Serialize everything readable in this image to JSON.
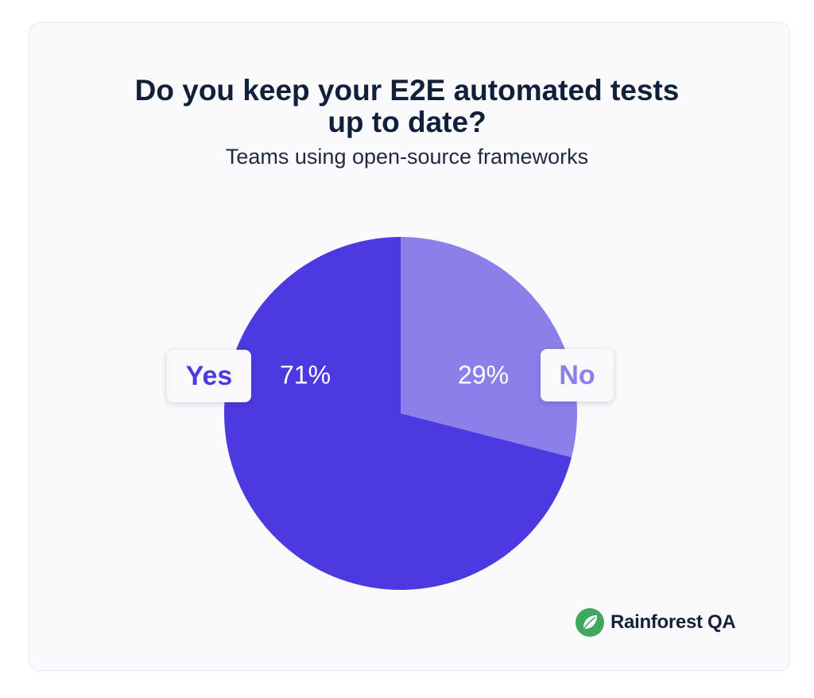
{
  "title": {
    "line1": "Do you keep your E2E automated tests",
    "line2": "up to date?"
  },
  "subtitle": "Teams using open-source frameworks",
  "brand": {
    "name": "Rainforest QA",
    "icon": "leaf-icon",
    "icon_color": "#3fa860"
  },
  "colors": {
    "yes": "#4b3adf",
    "no": "#8b7fe9",
    "legend_text_yes": "#4b3adf",
    "legend_text_no": "#8b7fe9"
  },
  "chart_data": {
    "type": "pie",
    "title": "Do you keep your E2E automated tests up to date?",
    "subtitle": "Teams using open-source frameworks",
    "slices": [
      {
        "name": "No",
        "value": 29,
        "label": "29%"
      },
      {
        "name": "Yes",
        "value": 71,
        "label": "71%"
      }
    ],
    "start_angle_deg": 0,
    "direction": "clockwise",
    "legend": [
      {
        "name": "Yes",
        "placement": "left"
      },
      {
        "name": "No",
        "placement": "right"
      }
    ]
  }
}
